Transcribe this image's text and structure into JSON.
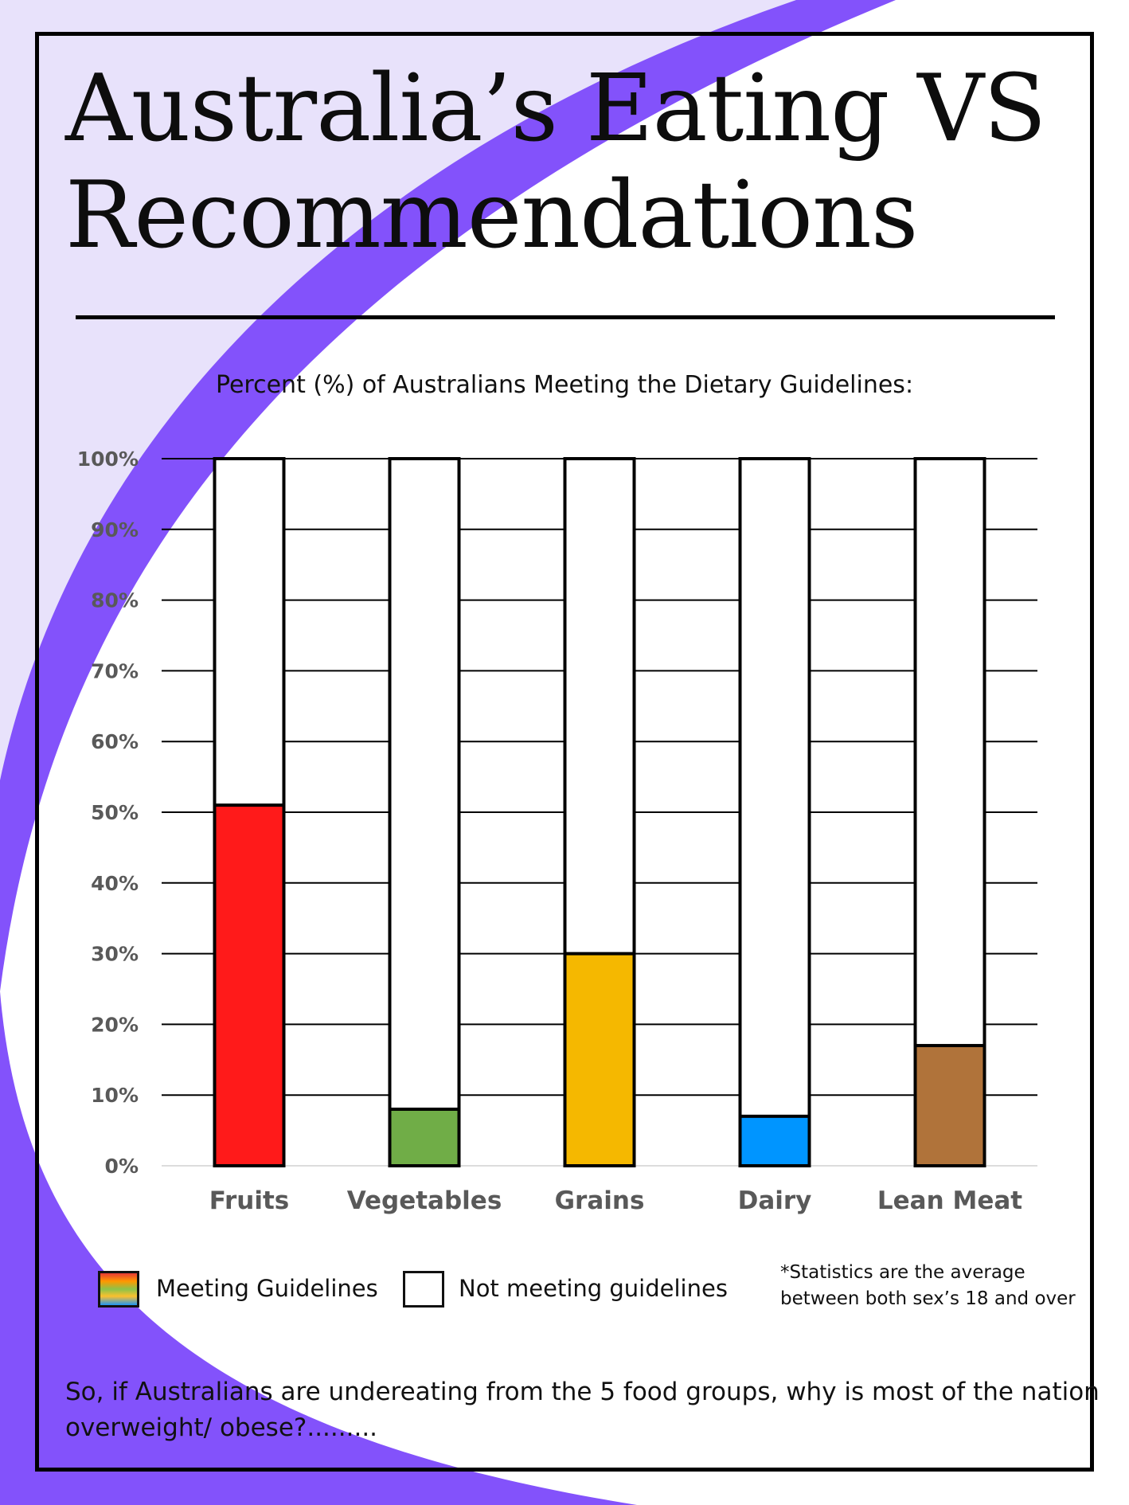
{
  "title": {
    "line1": "Australia’s Eating VS",
    "line2": "Recommendations"
  },
  "chart_data": {
    "type": "bar",
    "stacked": true,
    "title": "Percent (%) of Australians Meeting the Dietary Guidelines:",
    "xlabel": "",
    "ylabel": "",
    "categories": [
      "Fruits",
      "Vegetables",
      "Grains",
      "Dairy",
      "Lean Meat"
    ],
    "series": [
      {
        "name": "Meeting Guidelines",
        "values": [
          51,
          8,
          30,
          7,
          17
        ]
      },
      {
        "name": "Not meeting guidelines",
        "values": [
          49,
          92,
          70,
          93,
          83
        ]
      }
    ],
    "bar_colors": [
      "#ff1a1a",
      "#70ad47",
      "#f5b800",
      "#0095ff",
      "#b0733a"
    ],
    "not_meeting_color": "#ffffff",
    "ylim": [
      0,
      100
    ],
    "yticks": [
      "0%",
      "10%",
      "20%",
      "30%",
      "40%",
      "50%",
      "60%",
      "70%",
      "80%",
      "90%",
      "100%"
    ],
    "grid": true,
    "legend_position": "bottom-left"
  },
  "legend": {
    "meeting": "Meeting Guidelines",
    "not_meeting": "Not meeting guidelines"
  },
  "footnote": {
    "line1": "*Statistics are the average",
    "line2": "between both sex’s 18 and over"
  },
  "question": {
    "line1": "So, if Australians are undereating from the 5 food groups, why is most of the nation",
    "line2": "overweight/ obese?........."
  },
  "colors": {
    "purple": "#8352fb",
    "lavender": "#e8e2fb",
    "frame": "#000000"
  }
}
